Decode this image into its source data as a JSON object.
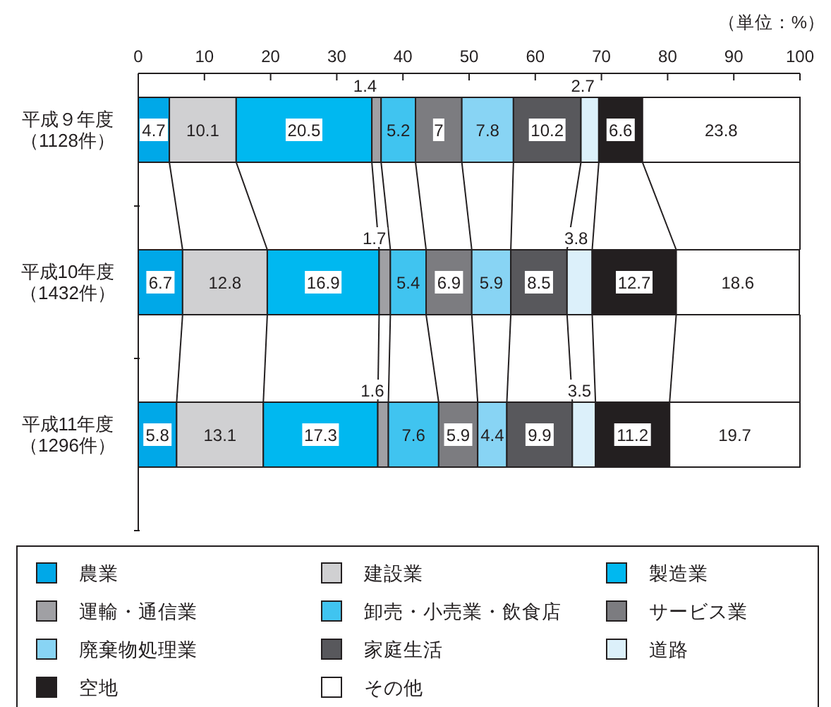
{
  "chart_data": {
    "type": "bar",
    "orientation": "horizontal",
    "stacked": true,
    "data_labels": true,
    "legend": "bottom",
    "categories": [
      "平成９年度（1128件）",
      "平成10年度（1432件）",
      "平成11年度（1296件）"
    ],
    "xlim": [
      0,
      100
    ],
    "xticks": [
      0,
      10,
      20,
      30,
      40,
      50,
      60,
      70,
      80,
      90,
      100
    ],
    "annotations": [
      "（単位：%）"
    ],
    "series": [
      {
        "name": "農業",
        "color": "#00a8e8",
        "values": [
          4.7,
          6.7,
          5.8
        ]
      },
      {
        "name": "建設業",
        "color": "#d0d0d2",
        "values": [
          10.1,
          12.8,
          13.1
        ]
      },
      {
        "name": "製造業",
        "color": "#00b8f0",
        "values": [
          20.5,
          16.9,
          17.3
        ]
      },
      {
        "name": "運輸・通信業",
        "color": "#a0a0a4",
        "values": [
          1.4,
          1.7,
          1.6
        ]
      },
      {
        "name": "卸売・小売業・飲食店",
        "color": "#40c4f0",
        "values": [
          5.2,
          5.4,
          7.6
        ]
      },
      {
        "name": "サービス業",
        "color": "#7c7c80",
        "values": [
          7,
          6.9,
          5.9
        ]
      },
      {
        "name": "廃棄物処理業",
        "color": "#88d4f4",
        "values": [
          7.8,
          5.9,
          4.4
        ]
      },
      {
        "name": "家庭生活",
        "color": "#58585c",
        "values": [
          10.2,
          8.5,
          9.9
        ]
      },
      {
        "name": "道路",
        "color": "#dcf0fa",
        "values": [
          2.7,
          3.8,
          3.5
        ]
      },
      {
        "name": "空地",
        "color": "#231f20",
        "values": [
          6.6,
          12.7,
          11.2
        ]
      },
      {
        "name": "その他",
        "color": "#ffffff",
        "values": [
          23.8,
          18.6,
          19.7
        ]
      }
    ]
  }
}
